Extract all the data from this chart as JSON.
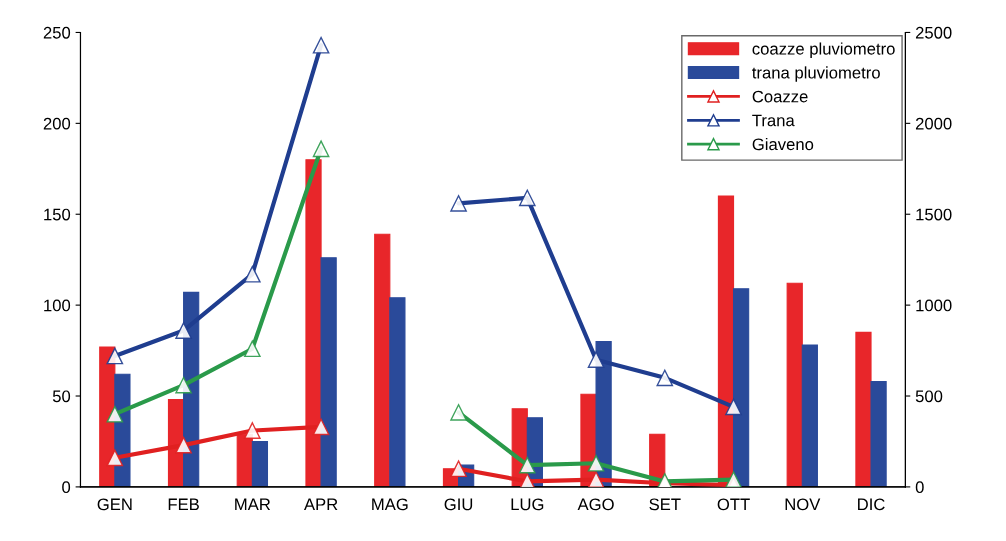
{
  "chart_data": {
    "type": "bar",
    "categories": [
      "GEN",
      "FEB",
      "MAR",
      "APR",
      "MAG",
      "GIU",
      "LUG",
      "AGO",
      "SET",
      "OTT",
      "NOV",
      "DIC"
    ],
    "series": [
      {
        "name": "coazze pluviometro",
        "color": "#e8262a",
        "values": [
          77,
          48,
          29,
          180,
          139,
          10,
          43,
          51,
          29,
          160,
          112,
          85
        ]
      },
      {
        "name": "trana pluviometro",
        "color": "#2a4a9a",
        "values": [
          62,
          107,
          25,
          126,
          104,
          12,
          38,
          80,
          null,
          109,
          78,
          58
        ]
      },
      {
        "name": "Coazze",
        "type": "line",
        "axis": "y2",
        "color": "#e02020",
        "values": [
          160,
          230,
          310,
          330,
          null,
          100,
          30,
          40,
          20,
          10,
          null,
          null
        ]
      },
      {
        "name": "Trana",
        "type": "line",
        "axis": "y2",
        "color": "#1f3d8f",
        "values": [
          720,
          860,
          1170,
          2430,
          null,
          1560,
          1590,
          700,
          600,
          440,
          null,
          null
        ]
      },
      {
        "name": "Giaveno",
        "type": "line",
        "axis": "y2",
        "color": "#2a9a4a",
        "values": [
          400,
          560,
          760,
          1860,
          null,
          410,
          120,
          130,
          30,
          40,
          null,
          null
        ]
      }
    ],
    "ylim": [
      0,
      250
    ],
    "yticks": [
      0,
      50,
      100,
      150,
      200,
      250
    ],
    "y2lim": [
      0,
      2500
    ],
    "y2ticks": [
      0,
      500,
      1000,
      1500,
      2000,
      2500
    ],
    "marker": "triangle",
    "line_style": "solid",
    "grid": false,
    "legend": "top right"
  }
}
